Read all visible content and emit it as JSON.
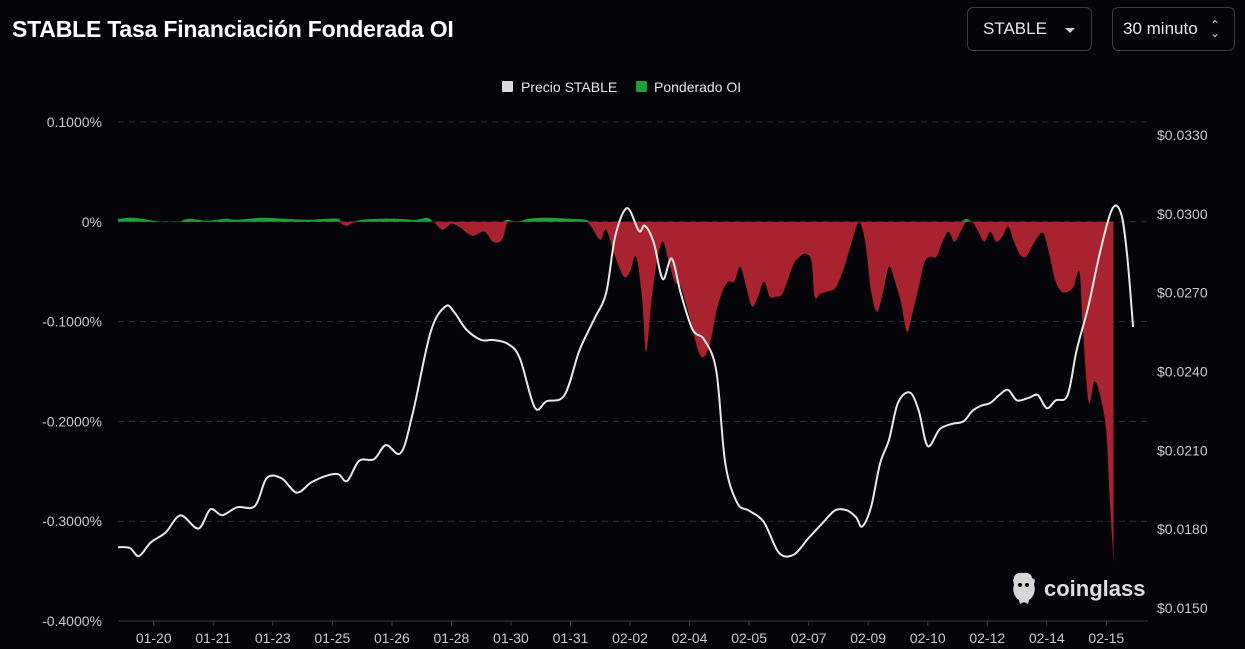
{
  "header": {
    "title": "STABLE Tasa Financiación Fonderada OI",
    "symbol_select": "STABLE",
    "interval_select": "30 minuto"
  },
  "watermark": {
    "text": "coinglass",
    "icon": "coinglass-logo-icon"
  },
  "colors": {
    "background": "#050509",
    "price_line": "#e8e8e8",
    "positive_fill": "#1f9e3a",
    "negative_fill": "#a8222f",
    "grid": "#2a2d33"
  },
  "chart_data": {
    "type": "area",
    "legend": [
      {
        "name": "Precio STABLE",
        "color": "#d9d9d9"
      },
      {
        "name": "Ponderado OI",
        "color": "#1f9e3a"
      }
    ],
    "legend_position": "top-center",
    "grid": true,
    "x_tick_labels": [
      "01-20",
      "01-21",
      "01-23",
      "01-25",
      "01-26",
      "01-28",
      "01-30",
      "01-31",
      "02-02",
      "02-04",
      "02-05",
      "02-07",
      "02-09",
      "02-10",
      "02-12",
      "02-14",
      "02-15"
    ],
    "x_range": [
      0,
      17.3
    ],
    "y_left": {
      "label": "",
      "ticks": [
        "0.1000%",
        "0%",
        "-0.1000%",
        "-0.2000%",
        "-0.3000%",
        "-0.4000%"
      ],
      "range": [
        -0.4,
        0.1
      ],
      "unit": "%"
    },
    "y_right": {
      "label": "",
      "ticks": [
        "$0.0330",
        "$0.0300",
        "$0.0270",
        "$0.0240",
        "$0.0210",
        "$0.0180",
        "$0.0150"
      ],
      "range": [
        0.0145,
        0.0335
      ],
      "unit": "$"
    },
    "series": [
      {
        "name": "Ponderado OI",
        "axis": "left",
        "points": [
          [
            0.0,
            0.003
          ],
          [
            0.25,
            0.004
          ],
          [
            0.5,
            0.002
          ],
          [
            0.75,
            0.0
          ],
          [
            1.0,
            0.0
          ],
          [
            1.2,
            0.003
          ],
          [
            1.5,
            0.001
          ],
          [
            1.8,
            0.003
          ],
          [
            2.0,
            0.002
          ],
          [
            2.4,
            0.004
          ],
          [
            2.8,
            0.003
          ],
          [
            3.2,
            0.002
          ],
          [
            3.5,
            0.003
          ],
          [
            3.7,
            0.003
          ],
          [
            3.75,
            -0.002
          ],
          [
            3.85,
            -0.004
          ],
          [
            3.95,
            -0.001
          ],
          [
            4.1,
            0.002
          ],
          [
            4.4,
            0.003
          ],
          [
            4.7,
            0.003
          ],
          [
            5.0,
            0.002
          ],
          [
            5.2,
            0.004
          ],
          [
            5.3,
            0.0
          ],
          [
            5.45,
            -0.008
          ],
          [
            5.6,
            -0.002
          ],
          [
            5.75,
            -0.006
          ],
          [
            5.95,
            -0.014
          ],
          [
            6.15,
            -0.01
          ],
          [
            6.3,
            -0.02
          ],
          [
            6.45,
            -0.018
          ],
          [
            6.55,
            0.002
          ],
          [
            6.7,
            0.0
          ],
          [
            6.9,
            0.003
          ],
          [
            7.2,
            0.004
          ],
          [
            7.6,
            0.003
          ],
          [
            7.85,
            0.002
          ],
          [
            7.95,
            -0.005
          ],
          [
            8.1,
            -0.018
          ],
          [
            8.2,
            -0.008
          ],
          [
            8.35,
            -0.035
          ],
          [
            8.5,
            -0.055
          ],
          [
            8.6,
            -0.05
          ],
          [
            8.7,
            -0.035
          ],
          [
            8.8,
            -0.075
          ],
          [
            8.87,
            -0.13
          ],
          [
            8.95,
            -0.085
          ],
          [
            9.05,
            -0.04
          ],
          [
            9.15,
            -0.02
          ],
          [
            9.25,
            -0.04
          ],
          [
            9.35,
            -0.06
          ],
          [
            9.45,
            -0.065
          ],
          [
            9.6,
            -0.095
          ],
          [
            9.75,
            -0.13
          ],
          [
            9.85,
            -0.135
          ],
          [
            9.95,
            -0.12
          ],
          [
            10.05,
            -0.09
          ],
          [
            10.15,
            -0.07
          ],
          [
            10.25,
            -0.06
          ],
          [
            10.35,
            -0.06
          ],
          [
            10.45,
            -0.045
          ],
          [
            10.55,
            -0.065
          ],
          [
            10.65,
            -0.085
          ],
          [
            10.75,
            -0.075
          ],
          [
            10.85,
            -0.06
          ],
          [
            10.95,
            -0.075
          ],
          [
            11.05,
            -0.075
          ],
          [
            11.15,
            -0.073
          ],
          [
            11.25,
            -0.058
          ],
          [
            11.35,
            -0.042
          ],
          [
            11.45,
            -0.035
          ],
          [
            11.55,
            -0.032
          ],
          [
            11.65,
            -0.04
          ],
          [
            11.7,
            -0.075
          ],
          [
            11.8,
            -0.072
          ],
          [
            11.9,
            -0.07
          ],
          [
            12.05,
            -0.066
          ],
          [
            12.2,
            -0.045
          ],
          [
            12.35,
            -0.015
          ],
          [
            12.45,
            0.0
          ],
          [
            12.55,
            -0.02
          ],
          [
            12.65,
            -0.07
          ],
          [
            12.75,
            -0.09
          ],
          [
            12.85,
            -0.07
          ],
          [
            12.95,
            -0.045
          ],
          [
            13.05,
            -0.06
          ],
          [
            13.15,
            -0.08
          ],
          [
            13.25,
            -0.11
          ],
          [
            13.35,
            -0.09
          ],
          [
            13.45,
            -0.065
          ],
          [
            13.55,
            -0.04
          ],
          [
            13.65,
            -0.035
          ],
          [
            13.75,
            -0.035
          ],
          [
            13.85,
            -0.02
          ],
          [
            13.95,
            -0.01
          ],
          [
            14.05,
            -0.02
          ],
          [
            14.15,
            -0.01
          ],
          [
            14.25,
            0.003
          ],
          [
            14.35,
            0.0
          ],
          [
            14.45,
            -0.01
          ],
          [
            14.55,
            -0.02
          ],
          [
            14.65,
            -0.01
          ],
          [
            14.75,
            -0.02
          ],
          [
            14.85,
            -0.015
          ],
          [
            14.95,
            -0.005
          ],
          [
            15.05,
            -0.02
          ],
          [
            15.15,
            -0.033
          ],
          [
            15.25,
            -0.035
          ],
          [
            15.35,
            -0.025
          ],
          [
            15.45,
            -0.015
          ],
          [
            15.55,
            -0.012
          ],
          [
            15.65,
            -0.035
          ],
          [
            15.75,
            -0.06
          ],
          [
            15.85,
            -0.07
          ],
          [
            15.95,
            -0.07
          ],
          [
            16.05,
            -0.065
          ],
          [
            16.15,
            -0.05
          ],
          [
            16.2,
            -0.1
          ],
          [
            16.3,
            -0.18
          ],
          [
            16.4,
            -0.16
          ],
          [
            16.5,
            -0.175
          ],
          [
            16.6,
            -0.21
          ],
          [
            16.65,
            -0.27
          ],
          [
            16.7,
            -0.32
          ],
          [
            16.72,
            -0.34
          ]
        ]
      },
      {
        "name": "Precio STABLE",
        "axis": "right",
        "points": [
          [
            0.0,
            0.01731
          ],
          [
            0.2,
            0.01728
          ],
          [
            0.35,
            0.01697
          ],
          [
            0.55,
            0.01749
          ],
          [
            0.8,
            0.01787
          ],
          [
            1.05,
            0.01852
          ],
          [
            1.35,
            0.01802
          ],
          [
            1.55,
            0.01875
          ],
          [
            1.75,
            0.01853
          ],
          [
            2.0,
            0.01883
          ],
          [
            2.3,
            0.01888
          ],
          [
            2.5,
            0.01994
          ],
          [
            2.75,
            0.01993
          ],
          [
            3.0,
            0.01939
          ],
          [
            3.25,
            0.01978
          ],
          [
            3.5,
            0.02003
          ],
          [
            3.7,
            0.02009
          ],
          [
            3.85,
            0.01983
          ],
          [
            4.05,
            0.0206
          ],
          [
            4.3,
            0.02066
          ],
          [
            4.5,
            0.0212
          ],
          [
            4.75,
            0.0209
          ],
          [
            4.95,
            0.0224
          ],
          [
            5.25,
            0.0255
          ],
          [
            5.5,
            0.02648
          ],
          [
            5.65,
            0.02625
          ],
          [
            5.85,
            0.0256
          ],
          [
            6.1,
            0.0252
          ],
          [
            6.3,
            0.0252
          ],
          [
            6.55,
            0.02505
          ],
          [
            6.75,
            0.0245
          ],
          [
            7.0,
            0.02263
          ],
          [
            7.2,
            0.02287
          ],
          [
            7.5,
            0.0231
          ],
          [
            7.75,
            0.0248
          ],
          [
            8.0,
            0.026
          ],
          [
            8.2,
            0.027
          ],
          [
            8.35,
            0.02913
          ],
          [
            8.55,
            0.03022
          ],
          [
            8.75,
            0.02935
          ],
          [
            8.85,
            0.02955
          ],
          [
            9.0,
            0.0289
          ],
          [
            9.15,
            0.02752
          ],
          [
            9.3,
            0.0283
          ],
          [
            9.45,
            0.027
          ],
          [
            9.65,
            0.0256
          ],
          [
            9.85,
            0.0252
          ],
          [
            10.05,
            0.024
          ],
          [
            10.2,
            0.0205
          ],
          [
            10.4,
            0.019
          ],
          [
            10.6,
            0.0187
          ],
          [
            10.85,
            0.01826
          ],
          [
            11.1,
            0.0171
          ],
          [
            11.35,
            0.01703
          ],
          [
            11.6,
            0.01766
          ],
          [
            11.85,
            0.01827
          ],
          [
            12.05,
            0.01872
          ],
          [
            12.25,
            0.01871
          ],
          [
            12.4,
            0.01844
          ],
          [
            12.5,
            0.0181
          ],
          [
            12.65,
            0.01886
          ],
          [
            12.8,
            0.0205
          ],
          [
            12.95,
            0.0214
          ],
          [
            13.1,
            0.0228
          ],
          [
            13.3,
            0.0232
          ],
          [
            13.45,
            0.0225
          ],
          [
            13.6,
            0.02116
          ],
          [
            13.8,
            0.0218
          ],
          [
            14.0,
            0.022
          ],
          [
            14.2,
            0.0221
          ],
          [
            14.35,
            0.0225
          ],
          [
            14.5,
            0.0227
          ],
          [
            14.65,
            0.0228
          ],
          [
            14.8,
            0.0231
          ],
          [
            14.95,
            0.0233
          ],
          [
            15.1,
            0.0229
          ],
          [
            15.3,
            0.023
          ],
          [
            15.45,
            0.0231
          ],
          [
            15.6,
            0.0226
          ],
          [
            15.75,
            0.0229
          ],
          [
            15.95,
            0.0231
          ],
          [
            16.1,
            0.0248
          ],
          [
            16.3,
            0.0265
          ],
          [
            16.5,
            0.0286
          ],
          [
            16.7,
            0.0302
          ],
          [
            16.85,
            0.03
          ],
          [
            16.95,
            0.0284
          ],
          [
            17.05,
            0.0257
          ]
        ]
      }
    ]
  }
}
